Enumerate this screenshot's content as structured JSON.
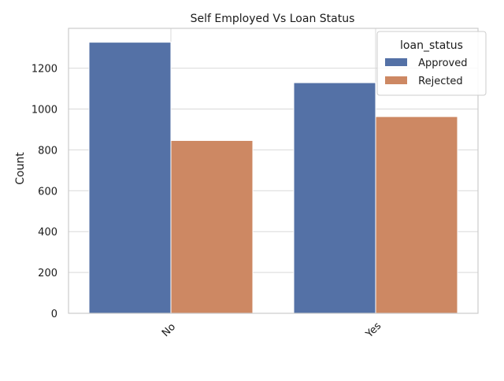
{
  "chart_data": {
    "type": "bar",
    "title": "Self Employed Vs Loan Status",
    "xlabel": "",
    "ylabel": "Count",
    "categories": [
      "No",
      "Yes"
    ],
    "series": [
      {
        "name": " Approved",
        "values": [
          1327,
          1129
        ],
        "color": "#5471a6"
      },
      {
        "name": " Rejected",
        "values": [
          846,
          963
        ],
        "color": "#cd8863"
      }
    ],
    "ylim": [
      0,
      1395
    ],
    "yticks": [
      0,
      200,
      400,
      600,
      800,
      1000,
      1200
    ],
    "grid": true,
    "legend": {
      "title": "loan_status",
      "position": "top-right"
    },
    "xtick_rotation": "45"
  }
}
